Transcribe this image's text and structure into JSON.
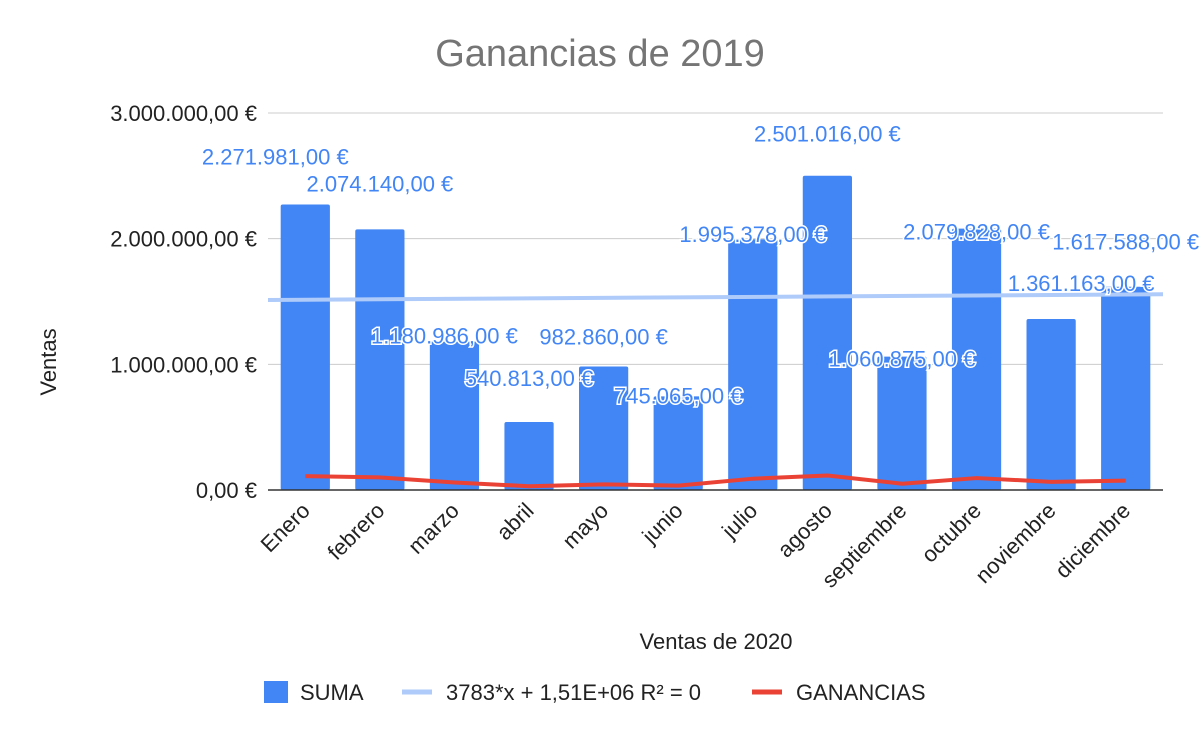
{
  "chart_data": {
    "type": "bar",
    "title": "Ganancias de 2019",
    "xlabel": "Ventas de 2020",
    "ylabel": "Ventas",
    "ylim": [
      0,
      3000000
    ],
    "yticks": [
      "0,00 €",
      "1.000.000,00 €",
      "2.000.000,00 €",
      "3.000.000,00 €"
    ],
    "ytick_values": [
      0,
      1000000,
      2000000,
      3000000
    ],
    "grid": true,
    "legend_position": "bottom",
    "categories": [
      "Enero",
      "febrero",
      "marzo",
      "abril",
      "mayo",
      "junio",
      "julio",
      "agosto",
      "septiembre",
      "octubre",
      "noviembre",
      "diciembre"
    ],
    "series": [
      {
        "name": "SUMA",
        "kind": "bar",
        "color": "#4285f4",
        "values": [
          2271981,
          2074140,
          1180986,
          540813,
          982860,
          745065,
          1995378,
          2501016,
          1060875,
          2079828,
          1361163,
          1617588
        ],
        "labels": [
          "2.271.981,00 €",
          "2.074.140,00 €",
          "1.180.986,00 €",
          "540.813,00 €",
          "982.860,00 €",
          "745.065,00 €",
          "1.995.378,00 €",
          "2.501.016,00 €",
          "1.060.875,00 €",
          "2.079.828,00 €",
          "1.361.163,00 €",
          "1.617.588,00 €"
        ]
      },
      {
        "name": "3783*x + 1,51E+06 R² = 0",
        "kind": "trendline",
        "color": "#aecbfa",
        "values": [
          1513783,
          1517566,
          1521349,
          1525132,
          1528915,
          1532698,
          1536481,
          1540264,
          1544047,
          1547830,
          1551613,
          1555396
        ]
      },
      {
        "name": "GANANCIAS",
        "kind": "line",
        "color": "#ea4335",
        "values": [
          110000,
          100000,
          60000,
          30000,
          45000,
          35000,
          90000,
          115000,
          50000,
          95000,
          65000,
          75000
        ]
      }
    ]
  }
}
